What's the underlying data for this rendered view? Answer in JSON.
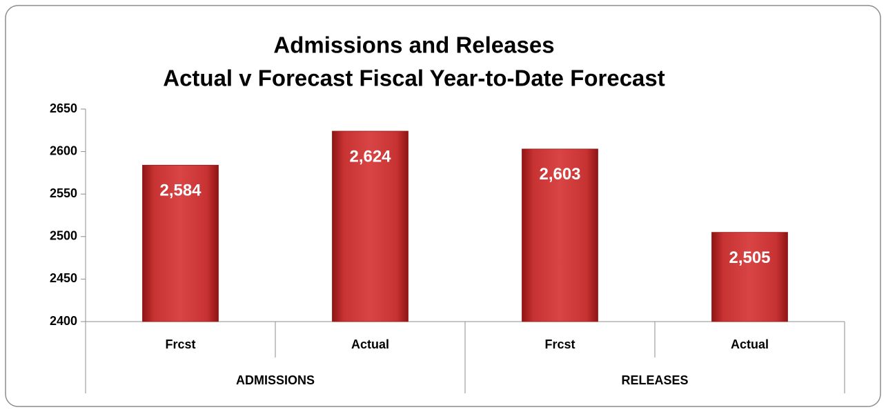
{
  "chart_data": {
    "type": "bar",
    "title": [
      "Admissions and Releases",
      "Actual v Forecast Fiscal Year-to-Date Forecast"
    ],
    "categories": [
      "Frcst",
      "Actual",
      "Frcst",
      "Actual"
    ],
    "groups": [
      {
        "name": "ADMISSIONS",
        "size": 2
      },
      {
        "name": "RELEASES",
        "size": 2
      }
    ],
    "values": [
      2584,
      2624,
      2603,
      2505
    ],
    "value_labels": [
      "2,584",
      "2,624",
      "2,603",
      "2,505"
    ],
    "color": "#c62828",
    "ylim": [
      2400,
      2650
    ],
    "yticks": [
      2400,
      2450,
      2500,
      2550,
      2600,
      2650
    ],
    "grid": false
  }
}
